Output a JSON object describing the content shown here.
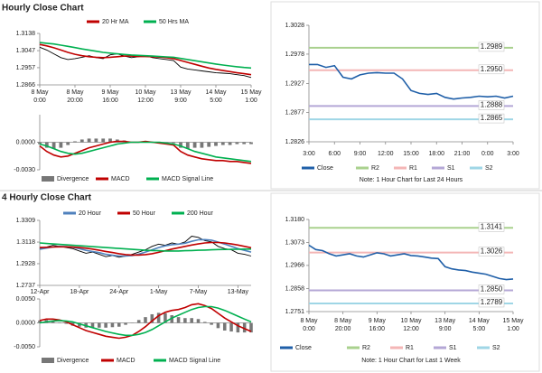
{
  "headings": [
    "Hourly Close Chart",
    "4 Hourly Close Chart"
  ],
  "chart_data": [
    {
      "type": "line",
      "categories": [
        "8 May\n0:00",
        null,
        null,
        null,
        null,
        "8 May\n20:00",
        null,
        null,
        null,
        null,
        "9 May\n16:00",
        null,
        null,
        null,
        null,
        "10 May\n12:00",
        null,
        null,
        null,
        null,
        "13 May\n9:00",
        null,
        null,
        null,
        null,
        "14 May\n5:00",
        null,
        null,
        null,
        null,
        "15 May\n1:00"
      ],
      "series": [
        {
          "color": "#000000",
          "values": [
            1.3065,
            1.305,
            1.303,
            1.301,
            1.3,
            1.3005,
            1.3012,
            1.302,
            1.301,
            1.3005,
            1.3025,
            1.303,
            1.3018,
            1.301,
            1.3015,
            1.302,
            1.301,
            1.3005,
            1.3,
            1.2995,
            1.296,
            1.295,
            1.2945,
            1.294,
            1.2935,
            1.293,
            1.2928,
            1.2925,
            1.292,
            1.2915,
            1.2905
          ]
        },
        {
          "name": "20 Hr MA",
          "color": "#c00000",
          "values": [
            1.308,
            1.3072,
            1.3062,
            1.305,
            1.3038,
            1.3028,
            1.302,
            1.3015,
            1.3012,
            1.301,
            1.3012,
            1.3015,
            1.3018,
            1.3018,
            1.3016,
            1.3016,
            1.3015,
            1.3013,
            1.301,
            1.3005,
            1.2995,
            1.2985,
            1.2975,
            1.2965,
            1.2955,
            1.2948,
            1.2942,
            1.2936,
            1.293,
            1.2925,
            1.292
          ]
        },
        {
          "name": "50 Hrs MA",
          "color": "#00b050",
          "values": [
            1.309,
            1.3086,
            1.3082,
            1.3076,
            1.307,
            1.3063,
            1.3056,
            1.305,
            1.3044,
            1.3038,
            1.3034,
            1.303,
            1.3027,
            1.3024,
            1.3022,
            1.302,
            1.3018,
            1.3016,
            1.3014,
            1.3012,
            1.3006,
            1.3,
            1.2994,
            1.2988,
            1.2982,
            1.2976,
            1.2971,
            1.2966,
            1.2962,
            1.2958,
            1.2955
          ]
        }
      ],
      "ylim": [
        1.2866,
        1.3138
      ],
      "yticks": [
        1.3138,
        1.3047,
        1.2957,
        1.2866
      ]
    },
    {
      "type": "macd",
      "series": [
        {
          "name": "Divergence",
          "kind": "bar",
          "color": "#777777",
          "values": [
            -0.0002,
            -0.0006,
            -0.0007,
            -0.0006,
            -0.0003,
            0.0001,
            0.0003,
            0.0004,
            0.0004,
            0.0004,
            0.0004,
            0.0003,
            0.0002,
            0.0,
            0.0,
            0.0001,
            0.0,
            -0.0001,
            -0.0001,
            -0.0001,
            -0.0006,
            -0.0007,
            -0.0006,
            -0.0006,
            -0.0005,
            -0.0004,
            -0.0003,
            -0.0003,
            -0.0002,
            -0.0002,
            -0.0002
          ]
        },
        {
          "name": "MACD",
          "color": "#c00000",
          "values": [
            -0.0004,
            -0.001,
            -0.0014,
            -0.0016,
            -0.0015,
            -0.0012,
            -0.0009,
            -0.0006,
            -0.0004,
            -0.0002,
            0.0,
            0.0001,
            0.0001,
            0.0,
            0.0,
            0.0001,
            0.0,
            -0.0001,
            -0.0002,
            -0.0003,
            -0.001,
            -0.0014,
            -0.0016,
            -0.0018,
            -0.0019,
            -0.002,
            -0.002,
            -0.0021,
            -0.0021,
            -0.0022,
            -0.0023
          ]
        },
        {
          "name": "MACD Signal Line",
          "color": "#00b050",
          "values": [
            -0.0002,
            -0.0004,
            -0.0007,
            -0.001,
            -0.0012,
            -0.0013,
            -0.0012,
            -0.001,
            -0.0008,
            -0.0006,
            -0.0004,
            -0.0002,
            -0.0001,
            0.0,
            0.0,
            0.0,
            0.0,
            0.0,
            -0.0001,
            -0.0002,
            -0.0004,
            -0.0007,
            -0.001,
            -0.0012,
            -0.0014,
            -0.0016,
            -0.0017,
            -0.0018,
            -0.0019,
            -0.002,
            -0.0021
          ]
        }
      ],
      "ylim": [
        -0.003,
        0.003
      ],
      "yticks": [
        {
          "value": 0,
          "label": "0.0000"
        },
        {
          "value": -0.003,
          "label": "-0.0030"
        }
      ]
    },
    {
      "type": "levels",
      "categories": [
        "3:00",
        null,
        null,
        "6:00",
        null,
        null,
        "9:00",
        null,
        null,
        "12:00",
        null,
        null,
        "15:00",
        null,
        null,
        "18:00",
        null,
        null,
        "21:00",
        null,
        null,
        "0:00",
        null,
        null,
        "3:00"
      ],
      "series": [
        {
          "name": "Close",
          "color": "#1f5fa8",
          "values": [
            1.296,
            1.296,
            1.2955,
            1.2958,
            1.2938,
            1.2935,
            1.2942,
            1.2945,
            1.2946,
            1.2945,
            1.2945,
            1.2935,
            1.2915,
            1.291,
            1.2908,
            1.291,
            1.2903,
            1.29,
            1.2902,
            1.2903,
            1.2905,
            1.2904,
            1.2905,
            1.2902,
            1.2905
          ]
        }
      ],
      "levels": [
        {
          "name": "R2",
          "value": 1.2989,
          "color": "#a9d18e"
        },
        {
          "name": "R1",
          "value": 1.295,
          "label": "1.2950",
          "color": "#f4b6b6"
        },
        {
          "name": "S1",
          "value": 1.2888,
          "color": "#b4a7d6"
        },
        {
          "name": "S2",
          "value": 1.2865,
          "color": "#9fd6e6"
        }
      ],
      "ylim": [
        1.2826,
        1.3028
      ],
      "yticks": [
        1.3028,
        1.2978,
        1.2927,
        1.2877,
        1.2826
      ],
      "note": "Note: 1 Hour Chart for Last 24 Hours"
    },
    {
      "type": "line",
      "categories": [
        "12-Apr",
        null,
        null,
        null,
        null,
        null,
        "18-Apr",
        null,
        null,
        null,
        null,
        null,
        "24-Apr",
        null,
        null,
        null,
        null,
        null,
        "1-May",
        null,
        null,
        null,
        null,
        null,
        "7-May",
        null,
        null,
        null,
        null,
        null,
        "13-May",
        null,
        null
      ],
      "series": [
        {
          "color": "#000000",
          "values": [
            1.306,
            1.3075,
            1.309,
            1.308,
            1.307,
            1.306,
            1.304,
            1.302,
            1.303,
            1.301,
            1.299,
            1.3,
            1.2985,
            1.2995,
            1.301,
            1.303,
            1.305,
            1.308,
            1.31,
            1.309,
            1.311,
            1.31,
            1.312,
            1.317,
            1.316,
            1.313,
            1.312,
            1.308,
            1.306,
            1.305,
            1.302,
            1.301,
            1.2995
          ]
        },
        {
          "name": "20 Hour",
          "color": "#4f81bd",
          "values": [
            1.3055,
            1.3065,
            1.3075,
            1.308,
            1.3078,
            1.3072,
            1.306,
            1.3045,
            1.3035,
            1.3025,
            1.301,
            1.3002,
            1.2995,
            1.2995,
            1.3,
            1.3012,
            1.303,
            1.305,
            1.307,
            1.3085,
            1.3095,
            1.31,
            1.3108,
            1.3125,
            1.3138,
            1.314,
            1.3135,
            1.3118,
            1.31,
            1.308,
            1.306,
            1.3045,
            1.303
          ]
        },
        {
          "name": "50 Hour",
          "color": "#c00000",
          "values": [
            1.307,
            1.3072,
            1.3075,
            1.3076,
            1.3076,
            1.3074,
            1.307,
            1.3064,
            1.3056,
            1.3046,
            1.3036,
            1.3026,
            1.3016,
            1.3008,
            1.3004,
            1.3004,
            1.3008,
            1.3016,
            1.3028,
            1.3042,
            1.3056,
            1.3068,
            1.308,
            1.3092,
            1.3102,
            1.311,
            1.3114,
            1.3114,
            1.311,
            1.3102,
            1.3092,
            1.308,
            1.3068
          ]
        },
        {
          "name": "200 Hour",
          "color": "#00b050",
          "values": [
            1.311,
            1.3106,
            1.3102,
            1.3098,
            1.3094,
            1.309,
            1.3086,
            1.3082,
            1.3078,
            1.3074,
            1.307,
            1.3066,
            1.3062,
            1.3058,
            1.3054,
            1.305,
            1.3046,
            1.3044,
            1.3042,
            1.304,
            1.304,
            1.304,
            1.3042,
            1.3044,
            1.3046,
            1.3048,
            1.305,
            1.3052,
            1.3053,
            1.3054,
            1.3055,
            1.3056,
            1.3056
          ]
        }
      ],
      "ylim": [
        1.2737,
        1.3309
      ],
      "yticks": [
        1.3309,
        1.3118,
        1.2928,
        1.2737
      ]
    },
    {
      "type": "macd",
      "series": [
        {
          "name": "Divergence",
          "kind": "bar",
          "color": "#777777",
          "values": [
            0.0005,
            0.0006,
            0.0004,
            0.0001,
            -0.0002,
            -0.0006,
            -0.0008,
            -0.001,
            -0.001,
            -0.001,
            -0.001,
            -0.0009,
            -0.0008,
            -0.0004,
            0.0,
            0.0006,
            0.0012,
            0.0018,
            0.0021,
            0.002,
            0.0016,
            0.0012,
            0.001,
            0.001,
            0.0008,
            0.0002,
            -0.0004,
            -0.0011,
            -0.0016,
            -0.0018,
            -0.002,
            -0.002,
            -0.002
          ]
        },
        {
          "name": "MACD",
          "color": "#c00000",
          "values": [
            0.0005,
            0.0008,
            0.0008,
            0.0006,
            0.0002,
            -0.0004,
            -0.001,
            -0.0016,
            -0.002,
            -0.0024,
            -0.0028,
            -0.003,
            -0.0032,
            -0.003,
            -0.0026,
            -0.0018,
            -0.0008,
            0.0004,
            0.0015,
            0.0022,
            0.0026,
            0.0028,
            0.0032,
            0.0038,
            0.004,
            0.0036,
            0.003,
            0.002,
            0.001,
            0.0002,
            -0.0006,
            -0.0012,
            -0.0018
          ]
        },
        {
          "name": "MACD Signal Line",
          "color": "#00b050",
          "values": [
            0.0,
            0.0002,
            0.0004,
            0.0005,
            0.0004,
            0.0002,
            -0.0002,
            -0.0006,
            -0.001,
            -0.0014,
            -0.0018,
            -0.0021,
            -0.0024,
            -0.0026,
            -0.0026,
            -0.0024,
            -0.002,
            -0.0014,
            -0.0006,
            0.0002,
            0.001,
            0.0016,
            0.0022,
            0.0028,
            0.0032,
            0.0034,
            0.0034,
            0.0031,
            0.0026,
            0.002,
            0.0014,
            0.0008,
            0.0002
          ]
        }
      ],
      "ylim": [
        -0.005,
        0.005
      ],
      "yticks": [
        {
          "value": 0.005,
          "label": "0.0050"
        },
        {
          "value": 0,
          "label": "0.0000"
        },
        {
          "value": -0.005,
          "label": "-0.0050"
        }
      ]
    },
    {
      "type": "levels",
      "categories": [
        "8 May\n0:00",
        null,
        null,
        null,
        null,
        "8 May\n20:00",
        null,
        null,
        null,
        null,
        "9 May\n16:00",
        null,
        null,
        null,
        null,
        "10 May\n12:00",
        null,
        null,
        null,
        null,
        "13 May\n9:00",
        null,
        null,
        null,
        null,
        "14 May\n5:00",
        null,
        null,
        null,
        null,
        "15 May\n1:00"
      ],
      "series": [
        {
          "name": "Close",
          "color": "#1f5fa8",
          "values": [
            1.306,
            1.304,
            1.3035,
            1.302,
            1.301,
            1.3015,
            1.302,
            1.301,
            1.3005,
            1.3015,
            1.3025,
            1.302,
            1.301,
            1.3015,
            1.302,
            1.3012,
            1.301,
            1.3005,
            1.3,
            1.2998,
            1.296,
            1.295,
            1.2945,
            1.2942,
            1.2935,
            1.293,
            1.2925,
            1.2915,
            1.2905,
            1.29,
            1.2903
          ]
        }
      ],
      "levels": [
        {
          "name": "R2",
          "value": 1.3141,
          "color": "#a9d18e"
        },
        {
          "name": "R1",
          "value": 1.3026,
          "color": "#f4b6b6"
        },
        {
          "name": "S1",
          "value": 1.285,
          "label": "1.2850",
          "color": "#b4a7d6"
        },
        {
          "name": "S2",
          "value": 1.2789,
          "color": "#9fd6e6"
        }
      ],
      "ylim": [
        1.2751,
        1.318
      ],
      "yticks": [
        {
          "value": 1.318,
          "label": "1.3180"
        },
        1.3073,
        1.2966,
        1.2858,
        1.2751
      ],
      "note": "Note: 1 Hour Chart for Last 1 Week"
    }
  ]
}
